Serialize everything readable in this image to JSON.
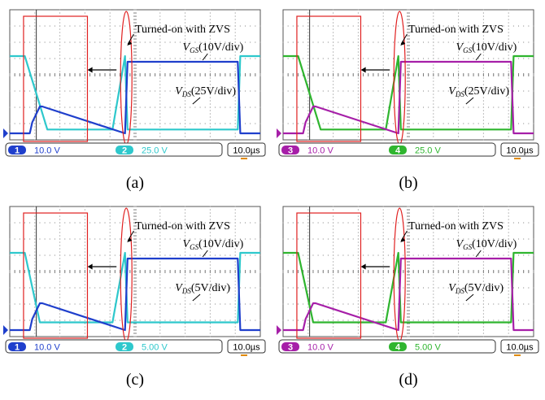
{
  "colors": {
    "ch1": "#1f3fcc",
    "ch2": "#2ec8cc",
    "ch3": "#a61fa8",
    "ch4": "#2fb52f",
    "grid": "#7f7f7f",
    "highlight": "#e02020"
  },
  "panels": [
    {
      "caption": "(a)",
      "zvs_label": "Turned-on with ZVS",
      "gs_label": {
        "sym": "V",
        "sub": "GS",
        "scale": "(10V/div)"
      },
      "ds_label": {
        "sym": "V",
        "sub": "DS",
        "scale": "(25V/div)"
      },
      "status": [
        {
          "num": "1",
          "value": "10.0 V",
          "color": "#1f3fcc"
        },
        {
          "num": "2",
          "value": "25.0 V",
          "color": "#2ec8cc"
        }
      ],
      "timebase": "10.0µs"
    },
    {
      "caption": "(b)",
      "zvs_label": "Turned-on with ZVS",
      "gs_label": {
        "sym": "V",
        "sub": "GS",
        "scale": "(10V/div)"
      },
      "ds_label": {
        "sym": "V",
        "sub": "DS",
        "scale": "(25V/div)"
      },
      "status": [
        {
          "num": "3",
          "value": "10.0 V",
          "color": "#a61fa8"
        },
        {
          "num": "4",
          "value": "25.0 V",
          "color": "#2fb52f"
        }
      ],
      "timebase": "10.0µs"
    },
    {
      "caption": "(c)",
      "zvs_label": "Turned-on with ZVS",
      "gs_label": {
        "sym": "V",
        "sub": "GS",
        "scale": "(10V/div)"
      },
      "ds_label": {
        "sym": "V",
        "sub": "DS",
        "scale": "(5V/div)"
      },
      "status": [
        {
          "num": "1",
          "value": "10.0 V",
          "color": "#1f3fcc"
        },
        {
          "num": "2",
          "value": "5.00 V",
          "color": "#2ec8cc"
        }
      ],
      "timebase": "10.0µs"
    },
    {
      "caption": "(d)",
      "zvs_label": "Turned-on with ZVS",
      "gs_label": {
        "sym": "V",
        "sub": "GS",
        "scale": "(10V/div)"
      },
      "ds_label": {
        "sym": "V",
        "sub": "DS",
        "scale": "(5V/div)"
      },
      "status": [
        {
          "num": "3",
          "value": "10.0 V",
          "color": "#a61fa8"
        },
        {
          "num": "4",
          "value": "5.00 V",
          "color": "#2fb52f"
        }
      ],
      "timebase": "10.0µs"
    }
  ],
  "chart_data": [
    {
      "type": "line",
      "x_unit": "µs",
      "x_per_div": 10.0,
      "series": [
        {
          "name": "V_GS (10V/div)",
          "channel": "1",
          "x": [
            0,
            8,
            9,
            12,
            13,
            46,
            47,
            91,
            92,
            100
          ],
          "y": [
            0,
            0,
            2.5,
            6,
            6,
            0,
            16,
            16,
            0,
            0
          ]
        },
        {
          "name": "V_DS (25V/div)",
          "channel": "2",
          "x": [
            0,
            6,
            15,
            41,
            46,
            47,
            91,
            92,
            100
          ],
          "y": [
            100,
            100,
            5,
            5,
            100,
            5,
            5,
            100,
            100
          ]
        }
      ]
    },
    {
      "type": "line",
      "x_unit": "µs",
      "x_per_div": 10.0,
      "series": [
        {
          "name": "V_GS (10V/div)",
          "channel": "3",
          "x": [
            0,
            8,
            9,
            12,
            13,
            46,
            47,
            91,
            92,
            100
          ],
          "y": [
            0,
            0,
            2.5,
            6,
            6,
            0,
            16,
            16,
            0,
            0
          ]
        },
        {
          "name": "V_DS (25V/div)",
          "channel": "4",
          "x": [
            0,
            6,
            15,
            41,
            46,
            47,
            91,
            92,
            100
          ],
          "y": [
            100,
            100,
            5,
            5,
            100,
            5,
            5,
            100,
            100
          ]
        }
      ]
    },
    {
      "type": "line",
      "x_unit": "µs",
      "x_per_div": 10.0,
      "series": [
        {
          "name": "V_GS (10V/div)",
          "channel": "1",
          "x": [
            0,
            8,
            9,
            12,
            13,
            46,
            47,
            91,
            92,
            100
          ],
          "y": [
            0,
            0,
            2.5,
            6,
            6,
            0,
            16,
            16,
            0,
            0
          ]
        },
        {
          "name": "V_DS (5V/div)",
          "channel": "2",
          "x": [
            0,
            6,
            12,
            41,
            46,
            47,
            91,
            92,
            100
          ],
          "y": [
            20,
            20,
            2,
            2,
            20,
            2,
            2,
            20,
            20
          ]
        }
      ]
    },
    {
      "type": "line",
      "x_unit": "µs",
      "x_per_div": 10.0,
      "series": [
        {
          "name": "V_GS (10V/div)",
          "channel": "3",
          "x": [
            0,
            8,
            9,
            12,
            13,
            46,
            47,
            91,
            92,
            100
          ],
          "y": [
            0,
            0,
            2.5,
            6,
            6,
            0,
            16,
            16,
            0,
            0
          ]
        },
        {
          "name": "V_DS (5V/div)",
          "channel": "4",
          "x": [
            0,
            6,
            12,
            41,
            46,
            47,
            91,
            92,
            100
          ],
          "y": [
            20,
            20,
            2,
            2,
            20,
            2,
            2,
            20,
            20
          ]
        }
      ]
    }
  ]
}
